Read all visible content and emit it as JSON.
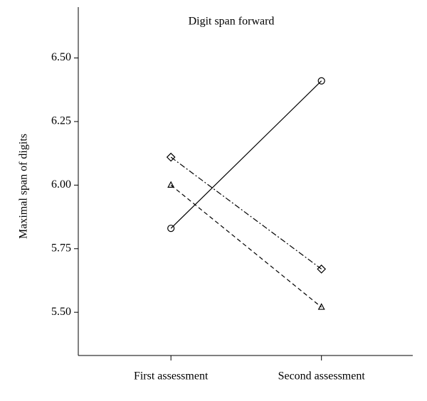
{
  "chart_data": {
    "type": "line",
    "title": "Digit span forward",
    "y_label": "Maximal span of digits",
    "categories": [
      "First assessment",
      "Second assessment"
    ],
    "series": [
      {
        "color": "#000000",
        "marker": "circle",
        "line_style": "solid",
        "values": [
          5.83,
          6.41
        ]
      },
      {
        "color": "#000000",
        "marker": "diamond",
        "line_style": "dashdot",
        "values": [
          6.11,
          5.67
        ]
      },
      {
        "color": "#000000",
        "marker": "triangle",
        "line_style": "dashed",
        "values": [
          6.0,
          5.52
        ]
      }
    ],
    "ylim": [
      5.33,
      6.7
    ],
    "yticks": [
      {
        "value": 5.5,
        "label": "5.50"
      },
      {
        "value": 5.75,
        "label": "5.75"
      },
      {
        "value": 6.0,
        "label": "6.00"
      },
      {
        "value": 6.25,
        "label": "6.25"
      },
      {
        "value": 6.5,
        "label": "6.50"
      }
    ]
  }
}
